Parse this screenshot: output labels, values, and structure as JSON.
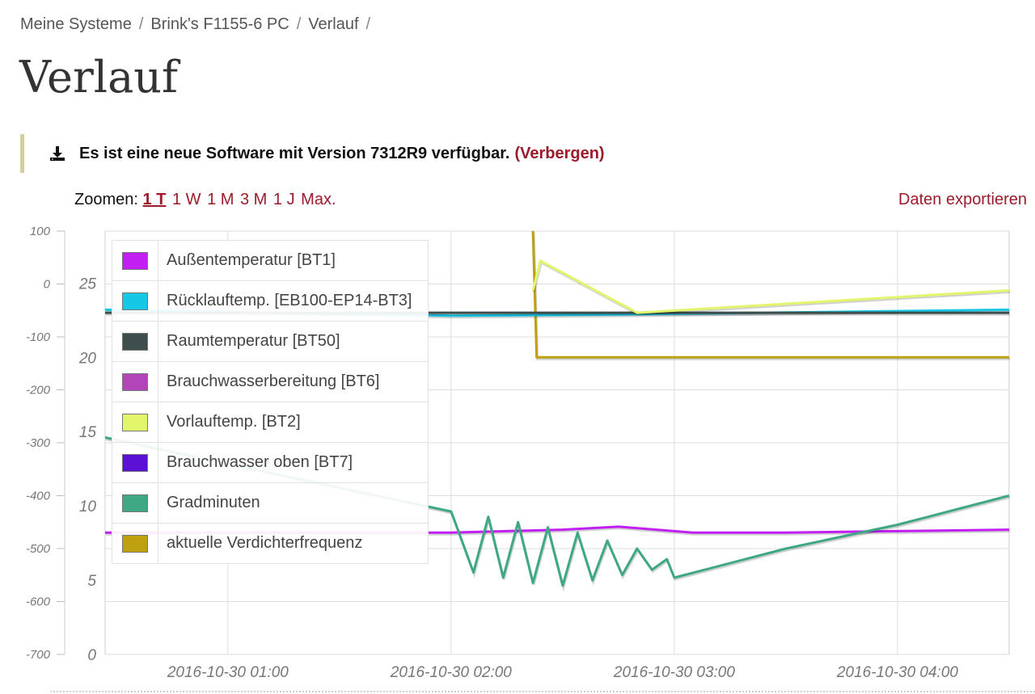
{
  "breadcrumb": {
    "items": [
      "Meine Systeme",
      "Brink's F1155-6 PC",
      "Verlauf"
    ],
    "separator": "/"
  },
  "page_title": "Verlauf",
  "notice": {
    "icon": "download-icon",
    "message": "Es ist eine neue Software mit Version 7312R9 verfügbar.",
    "hide_label": "(Verbergen)"
  },
  "zoom": {
    "label": "Zoomen:",
    "options": [
      "1 T",
      "1 W",
      "1 M",
      "3 M",
      "1 J",
      "Max."
    ],
    "selected": "1 T"
  },
  "export_label": "Daten exportieren",
  "colors": {
    "link": "#9b1b2a",
    "notice_border": "#d3cf9c"
  },
  "chart_data": {
    "type": "line",
    "x_ticks": [
      "2016-10-30 01:00",
      "2016-10-30 02:00",
      "2016-10-30 03:00",
      "2016-10-30 04:00"
    ],
    "xlim": [
      "2016-10-30 00:27",
      "2016-10-30 04:30"
    ],
    "y_axis_left": {
      "ticks": [
        100,
        0,
        -100,
        -200,
        -300,
        -400,
        -500,
        -600,
        -700
      ],
      "ylim": [
        -700,
        100
      ]
    },
    "y_axis_right": {
      "ticks": [
        25,
        20,
        15,
        10,
        5,
        0
      ],
      "ylim": [
        0,
        28.5
      ]
    },
    "grid": true,
    "legend_position": "top-left",
    "series": [
      {
        "name": "Außentemperatur [BT1]",
        "color": "#c21ff2",
        "axis": "right",
        "points": [
          [
            "00:27",
            8.2
          ],
          [
            "01:30",
            8.2
          ],
          [
            "02:00",
            8.2
          ],
          [
            "02:30",
            8.4
          ],
          [
            "02:45",
            8.6
          ],
          [
            "03:05",
            8.2
          ],
          [
            "03:30",
            8.2
          ],
          [
            "04:00",
            8.3
          ],
          [
            "04:30",
            8.4
          ]
        ]
      },
      {
        "name": "Rücklauftemp. [EB100-EP14-BT3]",
        "color": "#17c7e6",
        "axis": "right",
        "points": [
          [
            "00:27",
            23.2
          ],
          [
            "02:00",
            22.8
          ],
          [
            "02:50",
            22.9
          ],
          [
            "04:30",
            23.2
          ]
        ]
      },
      {
        "name": "Raumtemperatur [BT50]",
        "color": "#3e4e4c",
        "axis": "right",
        "points": [
          [
            "00:27",
            23.0
          ],
          [
            "02:00",
            23.0
          ],
          [
            "03:00",
            23.0
          ],
          [
            "04:30",
            23.0
          ]
        ]
      },
      {
        "name": "Brauchwasserbereitung [BT6]",
        "color": "#b245b8",
        "axis": "right",
        "points": []
      },
      {
        "name": "Vorlauftemp. [BT2]",
        "color": "#e3f56a",
        "axis": "right",
        "points": [
          [
            "02:22",
            24.5
          ],
          [
            "02:24",
            26.5
          ],
          [
            "02:50",
            23.0
          ],
          [
            "04:30",
            24.5
          ]
        ]
      },
      {
        "name": "Brauchwasser oben [BT7]",
        "color": "#5b12d6",
        "axis": "right",
        "points": []
      },
      {
        "name": "Gradminuten",
        "color": "#3ea884",
        "axis": "left",
        "points": [
          [
            "00:27",
            -290
          ],
          [
            "02:00",
            -430
          ],
          [
            "02:06",
            -545
          ],
          [
            "02:10",
            -440
          ],
          [
            "02:14",
            -555
          ],
          [
            "02:18",
            -450
          ],
          [
            "02:22",
            -565
          ],
          [
            "02:26",
            -460
          ],
          [
            "02:30",
            -570
          ],
          [
            "02:34",
            -470
          ],
          [
            "02:38",
            -560
          ],
          [
            "02:42",
            -485
          ],
          [
            "02:46",
            -550
          ],
          [
            "02:50",
            -500
          ],
          [
            "02:54",
            -540
          ],
          [
            "02:58",
            -520
          ],
          [
            "03:00",
            -555
          ],
          [
            "03:30",
            -500
          ],
          [
            "04:00",
            -455
          ],
          [
            "04:30",
            -400
          ]
        ]
      },
      {
        "name": "aktuelle Verdichterfrequenz",
        "color": "#bfa10f",
        "axis": "right",
        "points": [
          [
            "02:22",
            28.5
          ],
          [
            "02:23",
            20.0
          ],
          [
            "04:30",
            20.0
          ]
        ]
      }
    ]
  }
}
